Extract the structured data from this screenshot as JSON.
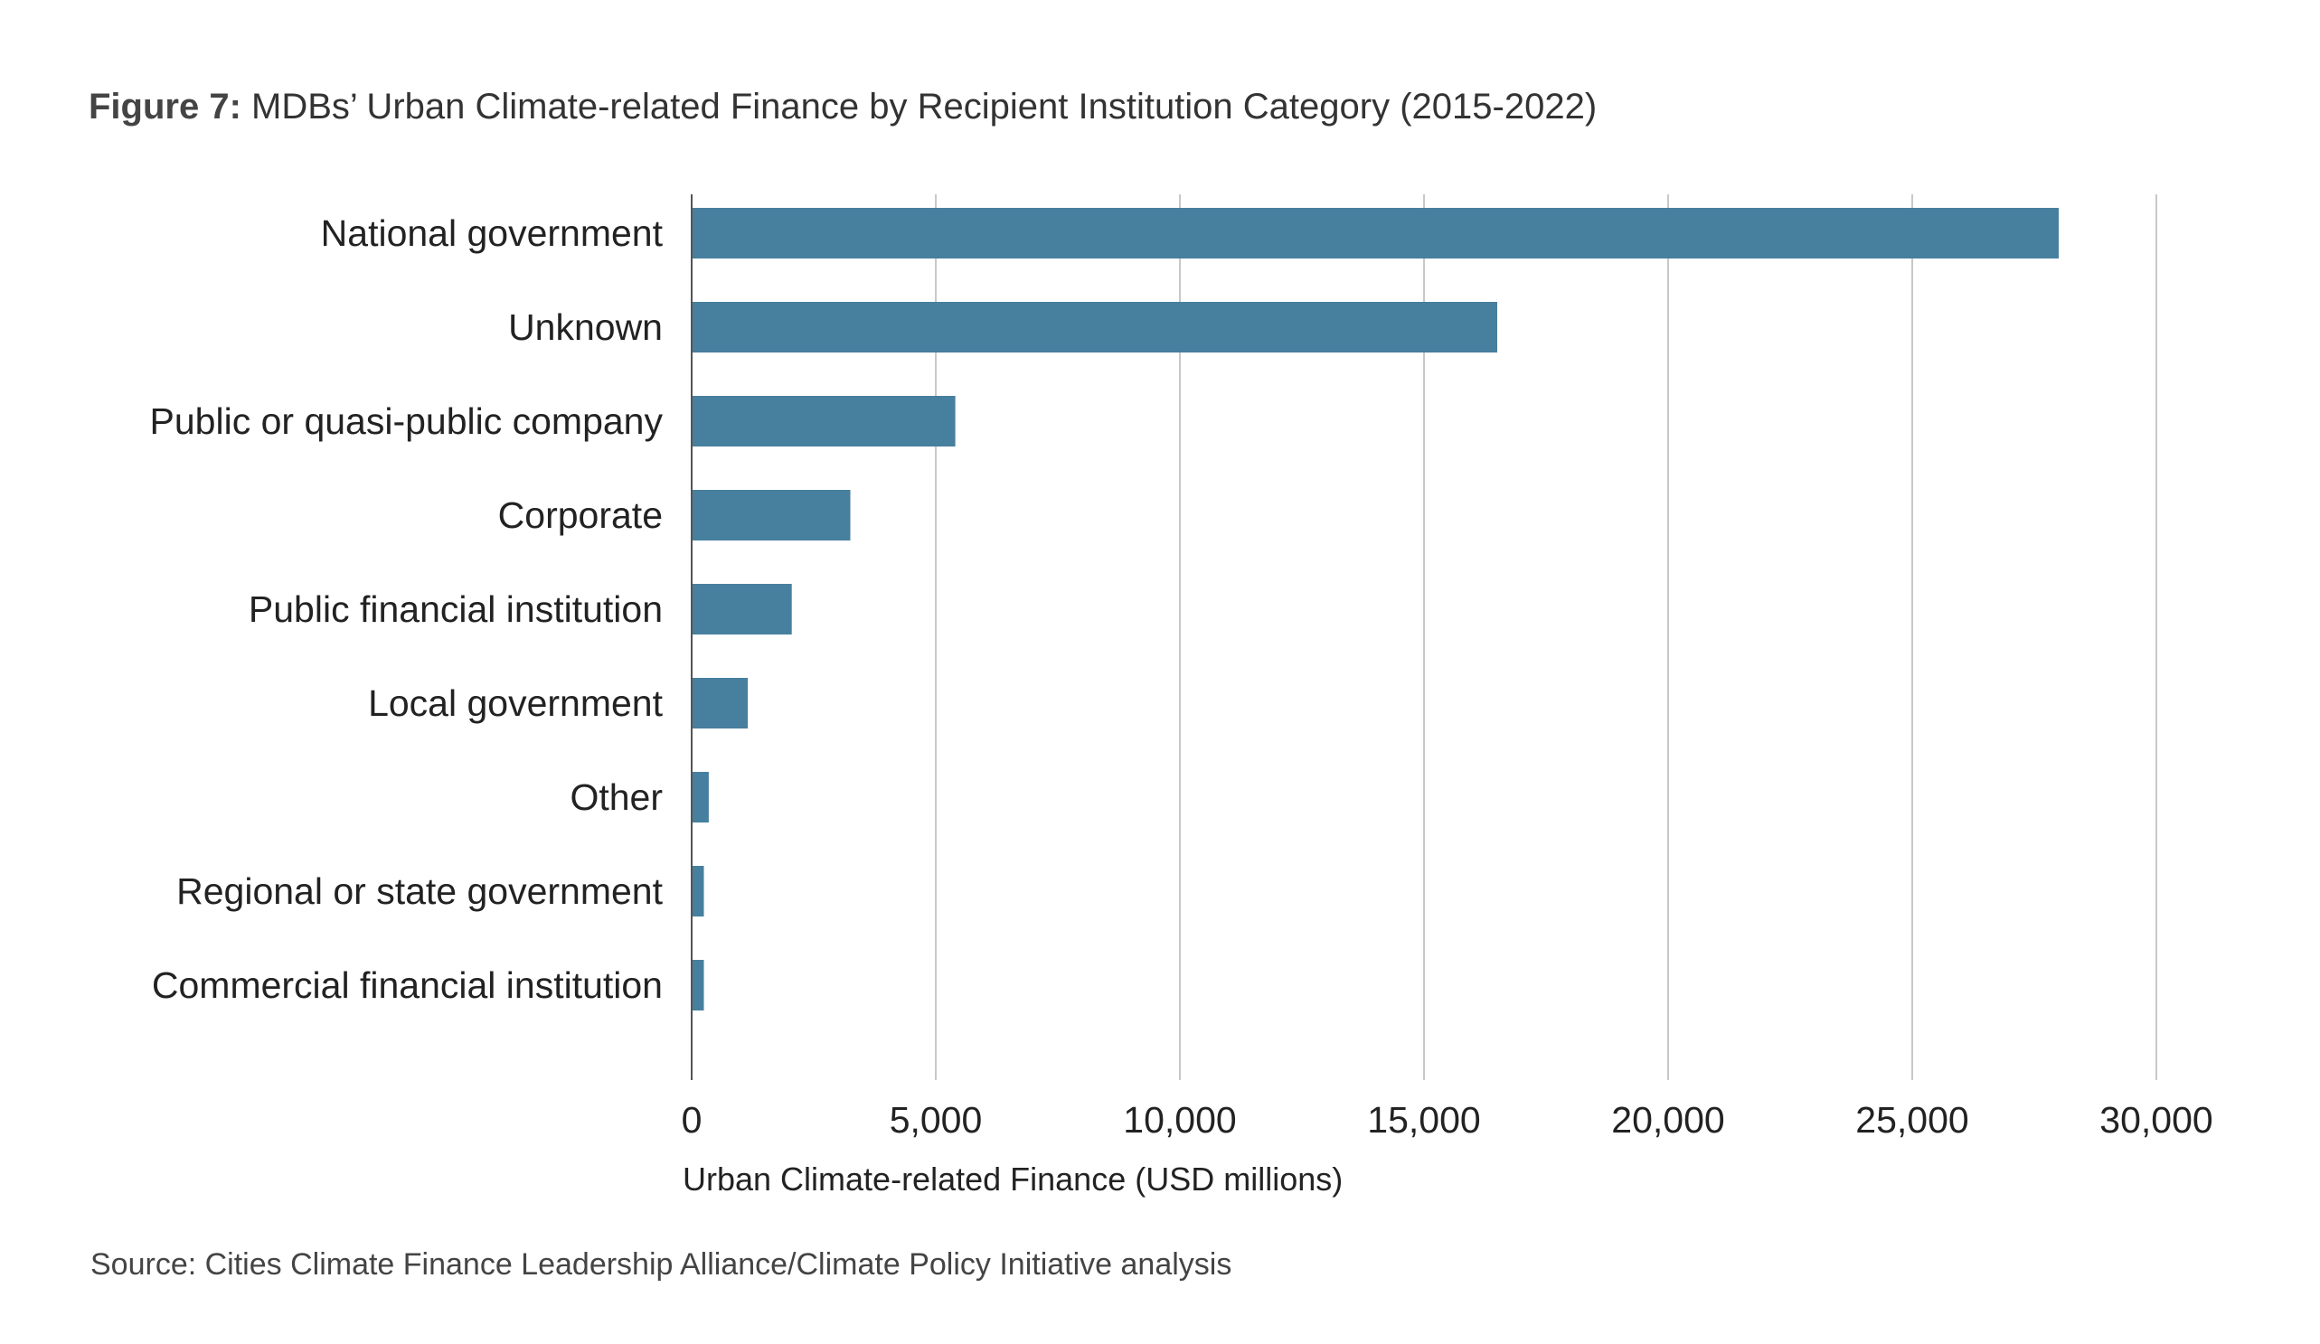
{
  "figure": {
    "label": "Figure 7:",
    "title": "MDBs’ Urban Climate-related Finance by Recipient Institution Category (2015-2022)",
    "source": "Source: Cities Climate Finance Leadership Alliance/Climate Policy Initiative analysis"
  },
  "colors": {
    "bar": "#477f9e",
    "grid": "#c8c8c8",
    "axis": "#555555"
  },
  "chart_data": {
    "type": "bar",
    "orientation": "horizontal",
    "categories": [
      "National government",
      "Unknown",
      "Public or quasi-public company",
      "Corporate",
      "Public financial institution",
      "Local government",
      "Other",
      "Regional or state government",
      "Commercial financial institution"
    ],
    "values": [
      28000,
      16500,
      5400,
      3250,
      2050,
      1150,
      350,
      250,
      250
    ],
    "xlabel": "Urban Climate-related Finance (USD millions)",
    "ylabel": "",
    "xlim": [
      0,
      30000
    ],
    "xticks": [
      0,
      5000,
      10000,
      15000,
      20000,
      25000,
      30000
    ],
    "xtick_labels": [
      "0",
      "5,000",
      "10,000",
      "15,000",
      "20,000",
      "25,000",
      "30,000"
    ],
    "grid": "vertical",
    "legend": "none"
  }
}
